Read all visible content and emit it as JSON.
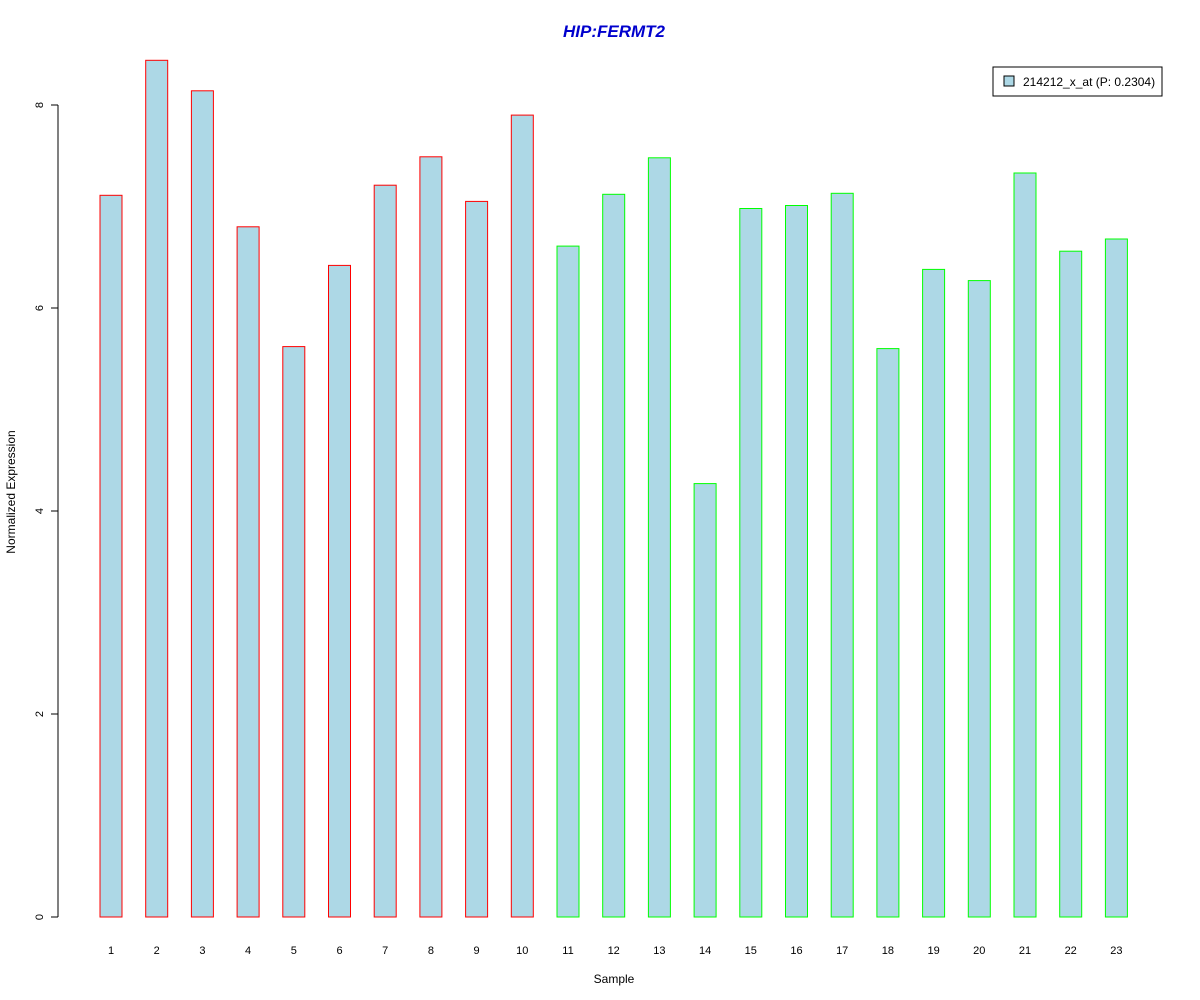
{
  "chart_data": {
    "type": "bar",
    "title": "HIP:FERMT2",
    "xlabel": "Sample",
    "ylabel": "Normalized Expression",
    "ylim": [
      0,
      8.5
    ],
    "yticks": [
      0,
      2,
      4,
      6,
      8
    ],
    "grid": false,
    "legend_position": "top-right",
    "categories": [
      "1",
      "2",
      "3",
      "4",
      "5",
      "6",
      "7",
      "8",
      "9",
      "10",
      "11",
      "12",
      "13",
      "14",
      "15",
      "16",
      "17",
      "18",
      "19",
      "20",
      "21",
      "22",
      "23"
    ],
    "series": [
      {
        "name": "214212_x_at (P: 0.2304)",
        "values": [
          7.11,
          8.44,
          8.14,
          6.8,
          5.62,
          6.42,
          7.21,
          7.49,
          7.05,
          7.9,
          6.61,
          7.12,
          7.48,
          4.27,
          6.98,
          7.01,
          7.13,
          5.6,
          6.38,
          6.27,
          7.33,
          6.56,
          6.68
        ]
      }
    ],
    "group_of_sample": [
      "red",
      "red",
      "red",
      "red",
      "red",
      "red",
      "red",
      "red",
      "red",
      "red",
      "green",
      "green",
      "green",
      "green",
      "green",
      "green",
      "green",
      "green",
      "green",
      "green",
      "green",
      "green",
      "green"
    ],
    "colors": {
      "bar_fill": "#add8e6",
      "red_group_border": "#ff0000",
      "green_group_border": "#00ff00",
      "title": "#0000cd"
    }
  }
}
